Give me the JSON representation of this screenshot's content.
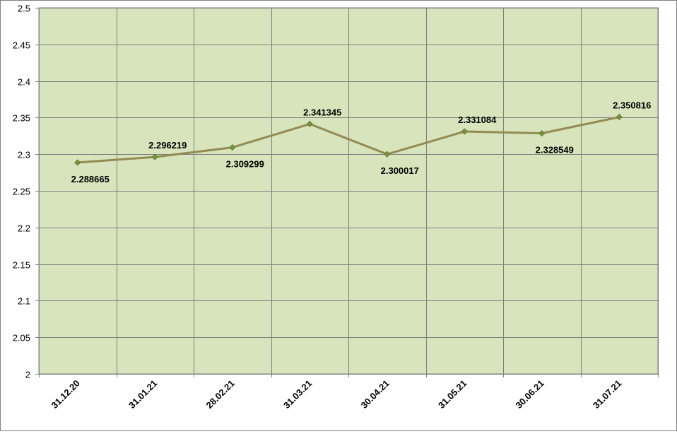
{
  "chart_data": {
    "type": "line",
    "categories": [
      "31.12.20",
      "31.01.21",
      "28.02.21",
      "31.03.21",
      "30.04.21",
      "31.05.21",
      "30.06.21",
      "31.07.21"
    ],
    "series": [
      {
        "values": [
          2.288665,
          2.296219,
          2.309299,
          2.341345,
          2.300017,
          2.331084,
          2.328549,
          2.350816
        ],
        "labels": [
          "2.288665",
          "2.296219",
          "2.309299",
          "2.341345",
          "2.300017",
          "2.331084",
          "2.328549",
          "2.350816"
        ],
        "label_position": [
          "below",
          "above",
          "below",
          "above",
          "below",
          "above",
          "below",
          "above"
        ]
      }
    ],
    "yticks": [
      "2",
      "2.05",
      "2.1",
      "2.15",
      "2.2",
      "2.25",
      "2.3",
      "2.35",
      "2.4",
      "2.45",
      "2.5"
    ],
    "ylim": [
      2,
      2.5
    ],
    "ytick_step": 0.05,
    "grid": true,
    "legend": "none",
    "title": "",
    "xlabel": "",
    "ylabel": "",
    "colors": {
      "plot_background": "#d8e4bc",
      "line": "#948a54",
      "marker": "#77933c",
      "grid": "#7f7f7f"
    }
  }
}
